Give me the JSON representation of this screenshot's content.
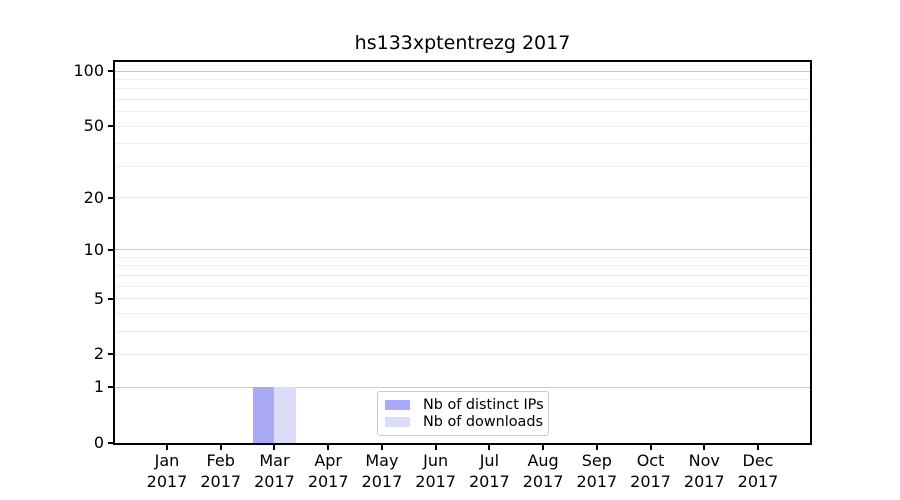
{
  "figure": {
    "title": "hs133xptentrezg 2017"
  },
  "chart_data": {
    "type": "bar",
    "title": "hs133xptentrezg 2017",
    "categories": [
      "Jan 2017",
      "Feb 2017",
      "Mar 2017",
      "Apr 2017",
      "May 2017",
      "Jun 2017",
      "Jul 2017",
      "Aug 2017",
      "Sep 2017",
      "Oct 2017",
      "Nov 2017",
      "Dec 2017"
    ],
    "series": [
      {
        "name": "Nb of distinct IPs",
        "color": "#aaaaf4",
        "values": [
          0,
          0,
          1,
          0,
          0,
          0,
          0,
          0,
          0,
          0,
          0,
          0
        ]
      },
      {
        "name": "Nb of downloads",
        "color": "#dcdbf8",
        "values": [
          0,
          0,
          1,
          0,
          0,
          0,
          0,
          0,
          0,
          0,
          0,
          0
        ]
      }
    ],
    "yscale": "log1p",
    "ylim": [
      0,
      112
    ],
    "ytick_values": [
      0,
      1,
      2,
      5,
      10,
      20,
      50,
      100
    ],
    "ytick_labels": [
      "0",
      "1",
      "2",
      "5",
      "10",
      "20",
      "50",
      "100"
    ],
    "major_grid_values": [
      1,
      10,
      100
    ],
    "minor_grid_values": [
      2,
      3,
      4,
      5,
      6,
      7,
      8,
      9,
      20,
      30,
      40,
      50,
      60,
      70,
      80,
      90
    ],
    "grid": "horizontal",
    "legend_position": "bottom-center",
    "colors": {
      "major_grid": "#c9c9c9",
      "minor_grid": "#ececec",
      "spine": "#000000",
      "text": "#000000",
      "background": "#ffffff"
    }
  }
}
